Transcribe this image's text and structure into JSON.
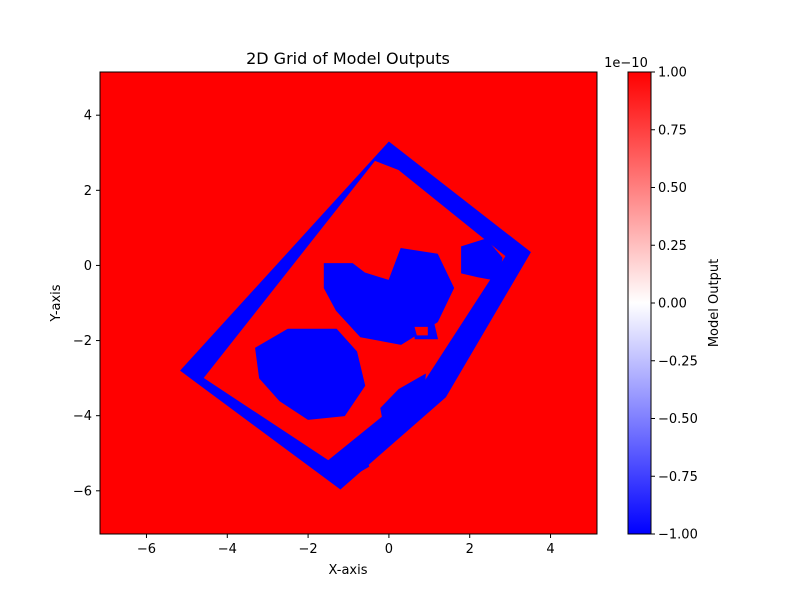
{
  "chart_data": {
    "type": "heatmap",
    "title": "2D Grid of Model Outputs",
    "xlabel": "X-axis",
    "ylabel": "Y-axis",
    "xlim": [
      -7.15,
      5.15
    ],
    "ylim": [
      -7.15,
      5.15
    ],
    "xticks": [
      -6,
      -4,
      -2,
      0,
      2,
      4
    ],
    "xtick_labels": [
      "−6",
      "−4",
      "−2",
      "0",
      "2",
      "4"
    ],
    "yticks": [
      4,
      2,
      0,
      -2,
      -4,
      -6
    ],
    "ytick_labels": [
      "4",
      "2",
      "0",
      "−2",
      "−4",
      "−6"
    ],
    "colormap": "bwr",
    "background_value": 1.0,
    "colors": {
      "positive": "#ff0000",
      "zero": "#ffffff",
      "negative": "#0000ff"
    },
    "colorbar": {
      "label": "Model Output",
      "range": [
        -1.0,
        1.0
      ],
      "offset_text": "1e−10",
      "ticks": [
        1.0,
        0.75,
        0.5,
        0.25,
        0.0,
        -0.25,
        -0.5,
        -0.75,
        -1.0
      ],
      "tick_labels": [
        "1.00",
        "0.75",
        "0.50",
        "0.25",
        "0.00",
        "−0.25",
        "−0.50",
        "−0.75",
        "−1.00"
      ]
    },
    "negative_regions": [
      {
        "kind": "ring",
        "value": -1.0,
        "outer": [
          [
            0.0,
            3.28
          ],
          [
            3.5,
            0.35
          ],
          [
            1.4,
            -3.5
          ],
          [
            -1.2,
            -5.95
          ],
          [
            -5.15,
            -2.8
          ]
        ],
        "inner": [
          [
            -0.35,
            2.8
          ],
          [
            -4.6,
            -3.0
          ],
          [
            -1.5,
            -5.2
          ],
          [
            0.85,
            -3.15
          ],
          [
            2.9,
            0.25
          ],
          [
            0.25,
            2.55
          ]
        ]
      },
      {
        "kind": "blob",
        "value": -1.0,
        "points": [
          [
            -3.3,
            -2.2
          ],
          [
            -2.5,
            -1.7
          ],
          [
            -1.3,
            -1.7
          ],
          [
            -0.8,
            -2.3
          ],
          [
            -0.6,
            -3.2
          ],
          [
            -1.1,
            -4.0
          ],
          [
            -2.0,
            -4.1
          ],
          [
            -2.7,
            -3.6
          ],
          [
            -3.2,
            -3.0
          ]
        ]
      },
      {
        "kind": "blob",
        "value": -1.0,
        "points": [
          [
            -1.6,
            0.05
          ],
          [
            -0.9,
            0.05
          ],
          [
            -0.6,
            -0.2
          ],
          [
            0.0,
            -0.4
          ],
          [
            0.3,
            0.45
          ],
          [
            1.2,
            0.3
          ],
          [
            1.6,
            -0.6
          ],
          [
            1.2,
            -1.5
          ],
          [
            0.3,
            -2.1
          ],
          [
            -0.7,
            -1.9
          ],
          [
            -1.3,
            -1.2
          ],
          [
            -1.6,
            -0.6
          ]
        ]
      },
      {
        "kind": "blob",
        "value": -1.0,
        "points": [
          [
            1.8,
            0.5
          ],
          [
            2.4,
            0.7
          ],
          [
            2.8,
            0.2
          ],
          [
            2.7,
            -0.4
          ],
          [
            2.2,
            -0.3
          ],
          [
            1.8,
            -0.2
          ]
        ]
      },
      {
        "kind": "blob",
        "value": -1.0,
        "points": [
          [
            0.6,
            -1.5
          ],
          [
            1.1,
            -1.5
          ],
          [
            1.2,
            -1.95
          ],
          [
            0.65,
            -1.95
          ]
        ]
      },
      {
        "kind": "blob",
        "value": -1.0,
        "points": [
          [
            0.25,
            -3.3
          ],
          [
            0.9,
            -2.9
          ],
          [
            0.85,
            -3.6
          ],
          [
            0.4,
            -4.2
          ],
          [
            -0.1,
            -4.4
          ],
          [
            -0.2,
            -3.8
          ]
        ]
      },
      {
        "kind": "blob",
        "value": -1.0,
        "points": [
          [
            -1.3,
            -5.3
          ],
          [
            -1.0,
            -4.95
          ],
          [
            -0.6,
            -5.0
          ],
          [
            -0.5,
            -5.35
          ],
          [
            -0.9,
            -5.6
          ]
        ]
      },
      {
        "kind": "blob",
        "value": 1.0,
        "points": [
          [
            0.65,
            -1.65
          ],
          [
            0.95,
            -1.65
          ],
          [
            0.95,
            -1.85
          ],
          [
            0.7,
            -1.85
          ]
        ]
      }
    ]
  }
}
